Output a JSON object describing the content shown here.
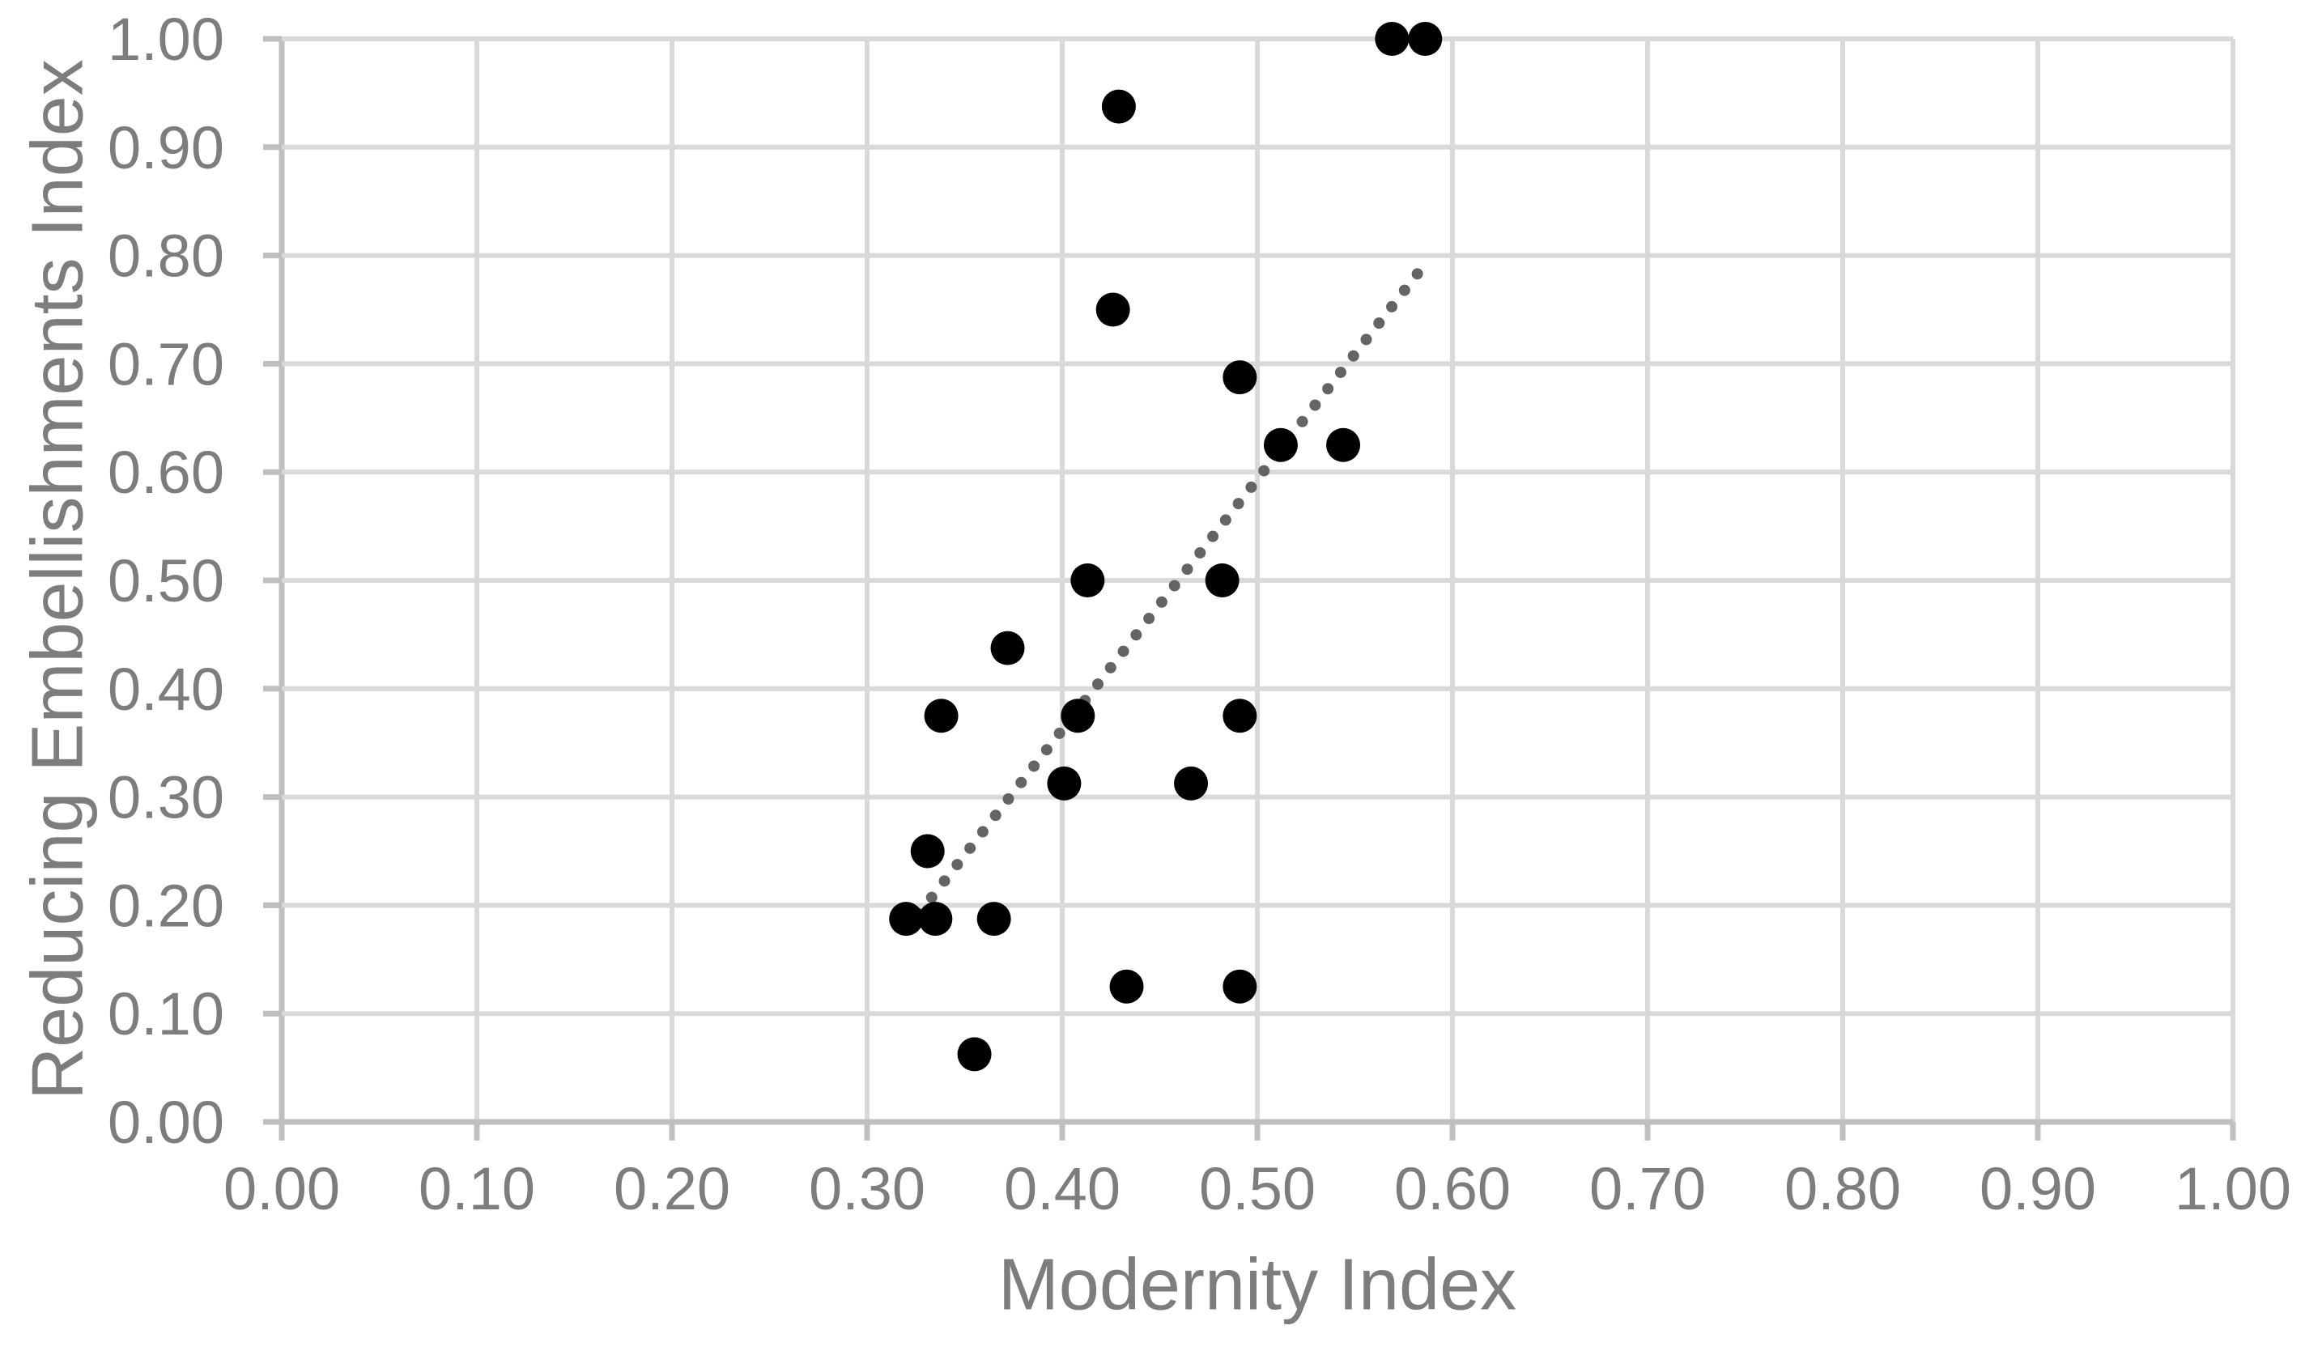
{
  "chart_data": {
    "type": "scatter",
    "title": "",
    "xlabel": "Modernity Index",
    "ylabel": "Reducing Embellishments Index",
    "xlim": [
      0.0,
      1.0
    ],
    "ylim": [
      0.0,
      1.0
    ],
    "grid": true,
    "legend": "none",
    "x_ticks": [
      0.0,
      0.1,
      0.2,
      0.3,
      0.4,
      0.5,
      0.6,
      0.7,
      0.8,
      0.9,
      1.0
    ],
    "y_ticks": [
      0.0,
      0.1,
      0.2,
      0.3,
      0.4,
      0.5,
      0.6,
      0.7,
      0.8,
      0.9,
      1.0
    ],
    "x_tick_labels": [
      "0.00",
      "0.10",
      "0.20",
      "0.30",
      "0.40",
      "0.50",
      "0.60",
      "0.70",
      "0.80",
      "0.90",
      "1.00"
    ],
    "y_tick_labels": [
      "0.00",
      "0.10",
      "0.20",
      "0.30",
      "0.40",
      "0.50",
      "0.60",
      "0.70",
      "0.80",
      "0.90",
      "1.00"
    ],
    "points": [
      [
        0.569,
        1.0
      ],
      [
        0.586,
        1.0
      ],
      [
        0.429,
        0.9375
      ],
      [
        0.426,
        0.75
      ],
      [
        0.491,
        0.6875
      ],
      [
        0.512,
        0.625
      ],
      [
        0.544,
        0.625
      ],
      [
        0.413,
        0.5
      ],
      [
        0.482,
        0.5
      ],
      [
        0.372,
        0.4375
      ],
      [
        0.338,
        0.375
      ],
      [
        0.408,
        0.375
      ],
      [
        0.491,
        0.375
      ],
      [
        0.401,
        0.3125
      ],
      [
        0.466,
        0.3125
      ],
      [
        0.331,
        0.25
      ],
      [
        0.32,
        0.1875
      ],
      [
        0.335,
        0.1875
      ],
      [
        0.365,
        0.1875
      ],
      [
        0.433,
        0.125
      ],
      [
        0.491,
        0.125
      ],
      [
        0.355,
        0.0625
      ]
    ],
    "trendline": {
      "style": "dotted",
      "start": [
        0.32,
        0.177
      ],
      "end": [
        0.582,
        0.783
      ]
    },
    "colors": {
      "point": "#000000",
      "trendline": "#646464",
      "gridline": "#d9d9d9",
      "axis_line": "#bfbfbf",
      "text": "#7d7d7d",
      "background": "#ffffff"
    }
  }
}
